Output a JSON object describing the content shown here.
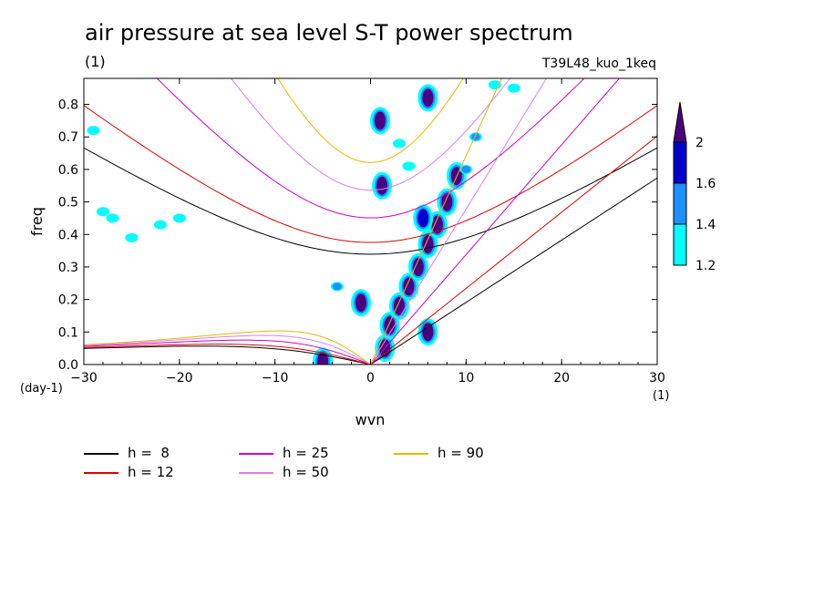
{
  "chart_data": {
    "type": "heatmap",
    "title": "air pressure at sea level S-T power spectrum",
    "subtitle": "(1)",
    "run_label": "T39L48_kuo_1keq",
    "xlabel": "wvn",
    "ylabel": "freq",
    "x_unit": "(1)",
    "y_unit": "(day-1)",
    "xlim": [
      -30,
      30
    ],
    "ylim": [
      0,
      0.88
    ],
    "xticks": [
      -30,
      -20,
      -10,
      0,
      10,
      20,
      30
    ],
    "yticks": [
      0.0,
      0.1,
      0.2,
      0.3,
      0.4,
      0.5,
      0.6,
      0.7,
      0.8
    ],
    "ytick_labels": [
      "0.0",
      "0.1",
      "0.2",
      "0.3",
      "0.4",
      "0.5",
      "0.6",
      "0.7",
      "0.8"
    ],
    "colorbar": {
      "levels": [
        1.2,
        1.4,
        1.6,
        2
      ],
      "colors": [
        "#00ffff",
        "#1e90ff",
        "#0000cd",
        "#4b0082"
      ]
    },
    "dispersion_curves": [
      {
        "label": "h =  8",
        "h": 8,
        "color": "#000000"
      },
      {
        "label": "h = 12",
        "h": 12,
        "color": "#dd0000"
      },
      {
        "label": "h = 25",
        "h": 25,
        "color": "#cc00cc"
      },
      {
        "label": "h = 50",
        "h": 50,
        "color": "#e080e0"
      },
      {
        "label": "h = 90",
        "h": 90,
        "color": "#e6b800"
      }
    ],
    "power_blobs": [
      {
        "x": 1.0,
        "y": 0.75,
        "level": 2
      },
      {
        "x": 1.2,
        "y": 0.55,
        "level": 2
      },
      {
        "x": 1.5,
        "y": 0.05,
        "level": 2
      },
      {
        "x": 2.0,
        "y": 0.12,
        "level": 2
      },
      {
        "x": 3.0,
        "y": 0.18,
        "level": 2
      },
      {
        "x": 4.0,
        "y": 0.24,
        "level": 2
      },
      {
        "x": 5.0,
        "y": 0.3,
        "level": 2
      },
      {
        "x": 6.0,
        "y": 0.37,
        "level": 2
      },
      {
        "x": 7.0,
        "y": 0.43,
        "level": 2
      },
      {
        "x": 8.0,
        "y": 0.5,
        "level": 2
      },
      {
        "x": 9.0,
        "y": 0.58,
        "level": 2
      },
      {
        "x": 5.5,
        "y": 0.45,
        "level": 1.6
      },
      {
        "x": 6.0,
        "y": 0.82,
        "level": 2
      },
      {
        "x": 10.0,
        "y": 0.6,
        "level": 1.4
      },
      {
        "x": 11.0,
        "y": 0.7,
        "level": 1.4
      },
      {
        "x": 3.0,
        "y": 0.68,
        "level": 1.2
      },
      {
        "x": 4.0,
        "y": 0.61,
        "level": 1.2
      },
      {
        "x": -1.0,
        "y": 0.19,
        "level": 2
      },
      {
        "x": -3.5,
        "y": 0.24,
        "level": 1.4
      },
      {
        "x": 6.0,
        "y": 0.1,
        "level": 2
      },
      {
        "x": -5.0,
        "y": 0.01,
        "level": 2
      },
      {
        "x": -28.0,
        "y": 0.47,
        "level": 1.2
      },
      {
        "x": -27.0,
        "y": 0.45,
        "level": 1.2
      },
      {
        "x": -20.0,
        "y": 0.45,
        "level": 1.2
      },
      {
        "x": -29.0,
        "y": 0.72,
        "level": 1.2
      },
      {
        "x": -22.0,
        "y": 0.43,
        "level": 1.2
      },
      {
        "x": -25.0,
        "y": 0.39,
        "level": 1.2
      },
      {
        "x": 15.0,
        "y": 0.85,
        "level": 1.2
      },
      {
        "x": 13.0,
        "y": 0.86,
        "level": 1.2
      }
    ]
  }
}
